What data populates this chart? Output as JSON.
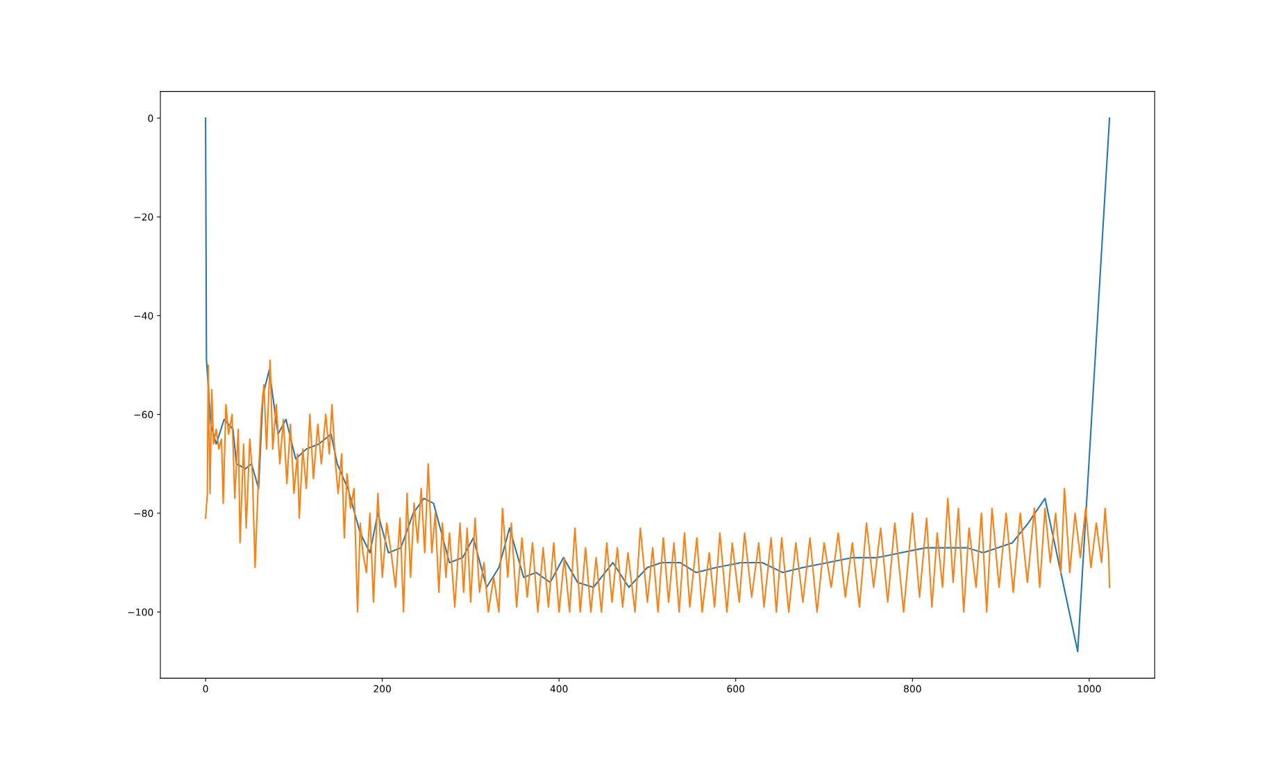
{
  "chart_data": {
    "type": "line",
    "xlim": [
      -51.15,
      1074.15
    ],
    "ylim": [
      -113.4,
      5.4
    ],
    "xticks": [
      0,
      200,
      400,
      600,
      800,
      1000
    ],
    "yticks": [
      {
        "value": 0,
        "label": "0"
      },
      {
        "value": -20,
        "label": "−20"
      },
      {
        "value": -40,
        "label": "−40"
      },
      {
        "value": -60,
        "label": "−60"
      },
      {
        "value": -80,
        "label": "−80"
      },
      {
        "value": -100,
        "label": "−100"
      }
    ],
    "grid": false,
    "series": [
      {
        "color": "#1f77b4",
        "x": [
          0,
          1,
          6,
          12,
          21,
          31,
          35,
          45,
          52,
          60,
          65,
          72,
          82,
          91,
          102,
          114,
          128,
          142,
          149,
          161,
          175,
          186,
          195,
          207,
          221,
          235,
          247,
          258,
          276,
          291,
          303,
          318,
          332,
          344,
          360,
          374,
          390,
          405,
          421,
          439,
          461,
          479,
          500,
          516,
          537,
          555,
          578,
          606,
          630,
          653,
          676,
          704,
          732,
          760,
          787,
          815,
          843,
          862,
          880,
          913,
          931,
          950,
          987,
          1023
        ],
        "values": [
          0,
          -49,
          -62,
          -66,
          -61,
          -63,
          -70,
          -71,
          -70,
          -75,
          -56,
          -51,
          -64,
          -61,
          -69,
          -67,
          -66,
          -64,
          -70,
          -75,
          -84,
          -88,
          -80,
          -88,
          -87,
          -80,
          -77,
          -78,
          -90,
          -89,
          -85,
          -95,
          -91,
          -83,
          -93,
          -92,
          -94,
          -89,
          -94,
          -95,
          -90,
          -95,
          -91,
          -90,
          -90,
          -92,
          -91,
          -90,
          -90,
          -92,
          -91,
          -90,
          -89,
          -89,
          -88,
          -87,
          -87,
          -87,
          -88,
          -86,
          -82,
          -77,
          -108,
          0
        ]
      },
      {
        "color": "#ff7f0e",
        "x": [
          0,
          2,
          3,
          5,
          7,
          9,
          12,
          15,
          18,
          20,
          23,
          26,
          30,
          33,
          37,
          39,
          43,
          46,
          50,
          53,
          56,
          60,
          63,
          66,
          69,
          73,
          76,
          80,
          84,
          88,
          92,
          96,
          100,
          104,
          106,
          110,
          114,
          118,
          122,
          127,
          131,
          136,
          140,
          143,
          147,
          150,
          154,
          157,
          160,
          164,
          168,
          172,
          175,
          178,
          182,
          186,
          190,
          195,
          200,
          205,
          210,
          215,
          220,
          224,
          228,
          232,
          236,
          240,
          244,
          248,
          252,
          256,
          260,
          264,
          268,
          272,
          276,
          282,
          288,
          292,
          296,
          300,
          305,
          310,
          315,
          320,
          326,
          332,
          336,
          342,
          346,
          352,
          358,
          364,
          370,
          376,
          382,
          388,
          394,
          400,
          406,
          412,
          418,
          424,
          430,
          436,
          442,
          448,
          454,
          460,
          466,
          472,
          478,
          486,
          492,
          500,
          506,
          512,
          518,
          524,
          530,
          536,
          542,
          548,
          556,
          562,
          570,
          576,
          582,
          590,
          596,
          604,
          610,
          618,
          626,
          632,
          640,
          646,
          652,
          660,
          668,
          676,
          684,
          692,
          700,
          708,
          716,
          724,
          732,
          740,
          748,
          756,
          764,
          772,
          780,
          790,
          800,
          808,
          816,
          822,
          828,
          834,
          840,
          846,
          852,
          858,
          864,
          872,
          878,
          884,
          890,
          898,
          906,
          914,
          922,
          930,
          938,
          944,
          950,
          956,
          962,
          968,
          972,
          978,
          984,
          990,
          996,
          1002,
          1008,
          1014,
          1018,
          1020,
          1022,
          1023
        ],
        "values": [
          -81,
          -76,
          -50,
          -76,
          -55,
          -66,
          -63,
          -67,
          -65,
          -78,
          -58,
          -64,
          -60,
          -77,
          -63,
          -86,
          -66,
          -83,
          -65,
          -72,
          -91,
          -72,
          -60,
          -54,
          -67,
          -49,
          -67,
          -58,
          -70,
          -61,
          -74,
          -62,
          -76,
          -68,
          -81,
          -67,
          -75,
          -60,
          -73,
          -62,
          -70,
          -60,
          -68,
          -58,
          -70,
          -76,
          -68,
          -85,
          -72,
          -79,
          -75,
          -100,
          -82,
          -88,
          -92,
          -80,
          -98,
          -76,
          -93,
          -82,
          -88,
          -95,
          -81,
          -100,
          -76,
          -93,
          -78,
          -86,
          -75,
          -88,
          -70,
          -88,
          -80,
          -96,
          -82,
          -93,
          -84,
          -99,
          -82,
          -96,
          -83,
          -98,
          -81,
          -96,
          -90,
          -100,
          -93,
          -100,
          -79,
          -93,
          -82,
          -99,
          -85,
          -97,
          -86,
          -100,
          -87,
          -99,
          -86,
          -100,
          -89,
          -100,
          -83,
          -100,
          -87,
          -100,
          -89,
          -100,
          -86,
          -98,
          -87,
          -99,
          -88,
          -100,
          -83,
          -98,
          -87,
          -100,
          -85,
          -98,
          -86,
          -100,
          -84,
          -99,
          -85,
          -100,
          -88,
          -99,
          -84,
          -100,
          -86,
          -98,
          -84,
          -97,
          -86,
          -99,
          -85,
          -100,
          -85,
          -100,
          -86,
          -98,
          -85,
          -100,
          -86,
          -95,
          -84,
          -97,
          -86,
          -99,
          -82,
          -95,
          -83,
          -98,
          -82,
          -100,
          -80,
          -97,
          -81,
          -99,
          -84,
          -95,
          -77,
          -94,
          -79,
          -100,
          -83,
          -95,
          -80,
          -100,
          -79,
          -95,
          -80,
          -96,
          -80,
          -94,
          -79,
          -95,
          -79,
          -90,
          -80,
          -92,
          -75,
          -92,
          -80,
          -89,
          -79,
          -91,
          -82,
          -90,
          -79,
          -84,
          -88,
          -95
        ]
      }
    ]
  }
}
